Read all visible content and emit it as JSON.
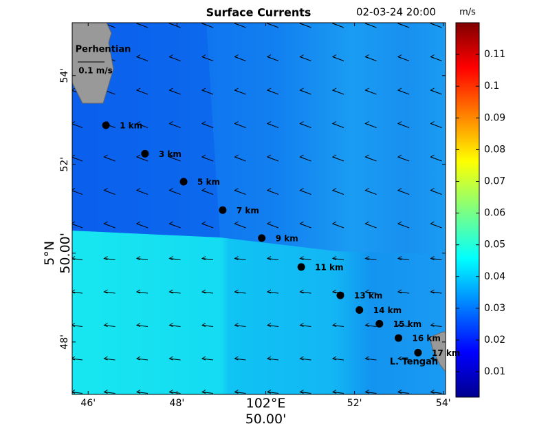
{
  "chart_data": {
    "type": "map",
    "title": "Surface Currents",
    "timestamp": "02-03-24 20:00",
    "xlim": [
      45.64,
      54.05
    ],
    "xticks": [
      {
        "value": 46,
        "label": "46'"
      },
      {
        "value": 48,
        "label": "48'"
      },
      {
        "value": 50,
        "label": "102°E 50.00'"
      },
      {
        "value": 52,
        "label": "52'"
      },
      {
        "value": 54,
        "label": "54'"
      }
    ],
    "ylim": [
      46.82,
      55.19
    ],
    "yticks": [
      {
        "value": 48,
        "label": "48'"
      },
      {
        "value": 50,
        "label": "5°N 50.00'"
      },
      {
        "value": 52,
        "label": "52'"
      },
      {
        "value": 54,
        "label": "54'"
      }
    ],
    "colorbar": {
      "label": "m/s",
      "lim": [
        0.002,
        0.12
      ],
      "ticks": [
        0.01,
        0.02,
        0.03,
        0.04,
        0.05,
        0.06,
        0.07,
        0.08,
        0.09,
        0.1,
        0.11
      ]
    },
    "points": {
      "labels": [
        "1 km",
        "3 km",
        "5 km",
        "7 km",
        "9 km",
        "11 km",
        "13 km",
        "14 km",
        "15 km",
        "16 km",
        "17 km"
      ],
      "x": [
        46.4,
        47.28,
        48.15,
        49.03,
        49.91,
        50.8,
        51.68,
        52.11,
        52.56,
        52.99,
        53.43
      ],
      "y": [
        52.88,
        52.24,
        51.61,
        50.97,
        50.34,
        49.69,
        49.05,
        48.72,
        48.41,
        48.09,
        47.76
      ]
    },
    "places": [
      "Perhentian",
      "L. Tengah"
    ],
    "scale_label": "0.1 m/s"
  }
}
